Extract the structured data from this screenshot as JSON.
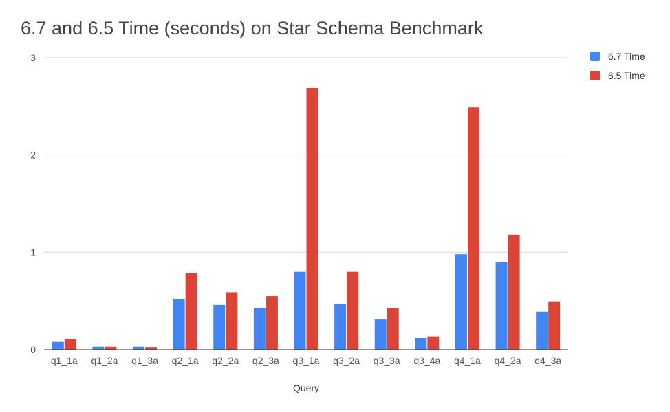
{
  "chart_data": {
    "type": "bar",
    "title": "6.7 and 6.5 Time (seconds) on Star Schema Benchmark",
    "xlabel": "Query",
    "ylabel": "",
    "ylim": [
      0,
      3
    ],
    "yticks": [
      "0",
      "1",
      "2",
      "3"
    ],
    "categories": [
      "q1_1a",
      "q1_2a",
      "q1_3a",
      "q2_1a",
      "q2_2a",
      "q2_3a",
      "q3_1a",
      "q3_2a",
      "q3_3a",
      "q3_4a",
      "q4_1a",
      "q4_2a",
      "q4_3a"
    ],
    "series": [
      {
        "name": "6.7 Time",
        "color": "#4285F4",
        "values": [
          0.08,
          0.03,
          0.03,
          0.52,
          0.46,
          0.43,
          0.8,
          0.47,
          0.31,
          0.12,
          0.98,
          0.9,
          0.39
        ]
      },
      {
        "name": "6.5 Time",
        "color": "#DB4437",
        "values": [
          0.11,
          0.03,
          0.02,
          0.79,
          0.59,
          0.55,
          2.69,
          0.8,
          0.43,
          0.13,
          2.49,
          1.18,
          0.49
        ]
      }
    ],
    "grid": true,
    "legend_position": "top-right"
  }
}
